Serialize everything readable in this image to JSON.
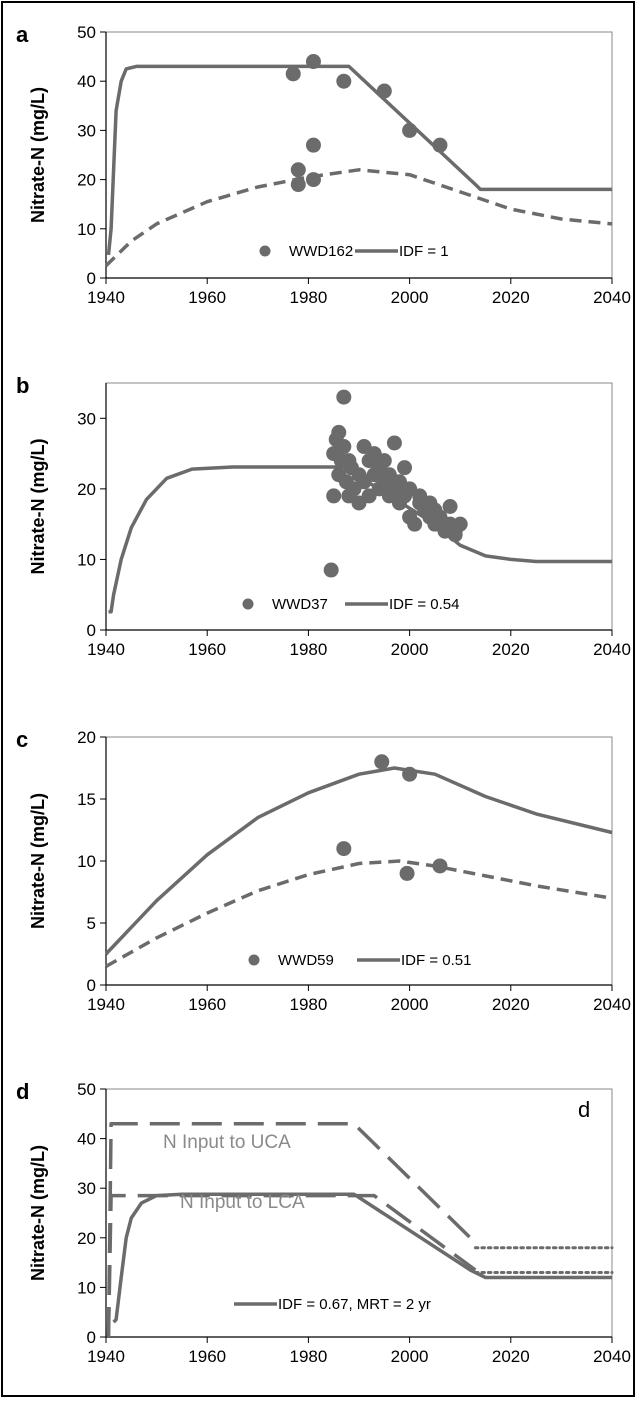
{
  "chart_data": [
    {
      "panel_label": "a",
      "type": "line",
      "ylabel": "Nitrate-N (mg/L)",
      "xlim": [
        1940,
        2040
      ],
      "ylim": [
        0,
        50
      ],
      "xticks": [
        1940,
        1960,
        1980,
        2000,
        2020,
        2040
      ],
      "yticks": [
        0,
        10,
        20,
        30,
        40,
        50
      ],
      "series": [
        {
          "name": "WWD162",
          "style": "points",
          "color": "#6b6b6b",
          "x": [
            1977,
            1978,
            1978,
            1981,
            1981,
            1981,
            1987,
            1995,
            2000,
            2006
          ],
          "y": [
            41.5,
            22,
            19,
            44,
            20,
            27,
            40,
            38,
            30,
            27
          ]
        },
        {
          "name": "IDF = 1",
          "style": "solid",
          "color": "#6b6b6b",
          "x": [
            1940.5,
            1941,
            1941.5,
            1942,
            1943,
            1944,
            1946,
            1950,
            1988,
            2013,
            2014,
            2040
          ],
          "y": [
            4.7,
            10,
            22,
            34,
            40,
            42.5,
            43,
            43,
            43,
            19,
            18,
            18
          ]
        },
        {
          "name": "",
          "style": "dashed",
          "color": "#6b6b6b",
          "x": [
            1940,
            1945,
            1950,
            1960,
            1970,
            1980,
            1990,
            2000,
            2010,
            2020,
            2030,
            2040
          ],
          "y": [
            2.5,
            7.5,
            11,
            15.5,
            18.5,
            20.5,
            22,
            21,
            17.5,
            14,
            12,
            11
          ]
        }
      ],
      "legend": [
        "WWD162",
        "IDF = 1"
      ]
    },
    {
      "panel_label": "b",
      "type": "line",
      "ylabel": "Nitrate-N (mg/L)",
      "xlim": [
        1940,
        2040
      ],
      "ylim": [
        0,
        35
      ],
      "xticks": [
        1940,
        1960,
        1980,
        2000,
        2020,
        2040
      ],
      "yticks": [
        0,
        10,
        20,
        30
      ],
      "series": [
        {
          "name": "WWD37",
          "style": "points",
          "color": "#6b6b6b",
          "x": [
            1985,
            1985,
            1985.5,
            1986,
            1986,
            1986.5,
            1987,
            1987,
            1987.5,
            1988,
            1988,
            1988.5,
            1989,
            1990,
            1990,
            1991,
            1991,
            1992,
            1992,
            1993,
            1993,
            1994,
            1994,
            1995,
            1995,
            1996,
            1996,
            1997,
            1997,
            1998,
            1998,
            1999,
            1999,
            2000,
            2000,
            2001,
            2002,
            2002,
            2003,
            2004,
            2004,
            2005,
            2005,
            2006,
            2006,
            2007,
            2008,
            2008,
            2009,
            2009,
            2010,
            1984.5
          ],
          "y": [
            19,
            25,
            27,
            22,
            28,
            24,
            33,
            26,
            21,
            24,
            19,
            23,
            20,
            22,
            18,
            26,
            21,
            24,
            19,
            25,
            22,
            23,
            20,
            24,
            21,
            22,
            19,
            26.5,
            20,
            21,
            18,
            23,
            19,
            20,
            16,
            15,
            19,
            18,
            17,
            18,
            16,
            17,
            15,
            16,
            15,
            14,
            17.5,
            15,
            14,
            13.5,
            15,
            8.5
          ]
        },
        {
          "name": "IDF = 0.54",
          "style": "solid",
          "color": "#6b6b6b",
          "x": [
            1940.5,
            1941,
            1941.5,
            1943,
            1945,
            1948,
            1952,
            1957,
            1965,
            1987,
            2005,
            2010,
            2015,
            2020,
            2025,
            2040
          ],
          "y": [
            2.6,
            2.6,
            5,
            10,
            14.5,
            18.5,
            21.5,
            22.8,
            23.1,
            23.1,
            15,
            12,
            10.5,
            10,
            9.7,
            9.7
          ]
        }
      ],
      "legend": [
        "WWD37",
        "IDF = 0.54"
      ]
    },
    {
      "panel_label": "c",
      "type": "line",
      "ylabel": "Nitrate-N (mg/L)",
      "xlim": [
        1940,
        2040
      ],
      "ylim": [
        0,
        20
      ],
      "xticks": [
        1940,
        1960,
        1980,
        2000,
        2020,
        2040
      ],
      "yticks": [
        0,
        5,
        10,
        15,
        20
      ],
      "series": [
        {
          "name": "WWD59",
          "style": "points",
          "color": "#6b6b6b",
          "x": [
            1987,
            1994.5,
            1999.5,
            2000,
            2006
          ],
          "y": [
            11,
            18,
            9,
            17,
            9.6
          ]
        },
        {
          "name": "IDF = 0.51",
          "style": "solid",
          "color": "#6b6b6b",
          "x": [
            1940,
            1950,
            1960,
            1970,
            1980,
            1990,
            1997,
            2005,
            2015,
            2025,
            2040
          ],
          "y": [
            2.5,
            6.8,
            10.5,
            13.5,
            15.5,
            17,
            17.5,
            17,
            15.2,
            13.8,
            12.3
          ]
        },
        {
          "name": "",
          "style": "dashed",
          "color": "#6b6b6b",
          "x": [
            1940,
            1950,
            1960,
            1970,
            1980,
            1990,
            1998,
            2005,
            2015,
            2025,
            2040
          ],
          "y": [
            1.5,
            3.8,
            5.8,
            7.6,
            8.9,
            9.8,
            10,
            9.6,
            8.8,
            8,
            7
          ]
        }
      ],
      "legend": [
        "WWD59",
        "IDF = 0.51"
      ]
    },
    {
      "panel_label": "d",
      "corner_label": "d",
      "type": "line",
      "ylabel": "Nitrate-N (mg/L)",
      "xlim": [
        1940,
        2040
      ],
      "ylim": [
        0,
        50
      ],
      "xticks": [
        1940,
        1960,
        1980,
        2000,
        2020,
        2040
      ],
      "yticks": [
        0,
        10,
        20,
        30,
        40,
        50
      ],
      "annotations": [
        "N Input to UCA",
        "N Input to LCA"
      ],
      "series": [
        {
          "name": "",
          "style": "longdash",
          "color": "#6b6b6b",
          "x": [
            1940.5,
            1941,
            1941.5,
            1989,
            2013
          ],
          "y": [
            0,
            43,
            43,
            43,
            19
          ]
        },
        {
          "name": "",
          "style": "dotted",
          "color": "#6b6b6b",
          "x": [
            2013,
            2040
          ],
          "y": [
            18,
            18
          ]
        },
        {
          "name": "",
          "style": "longdash",
          "color": "#6b6b6b",
          "x": [
            1940.5,
            1941,
            1942,
            1993,
            2013
          ],
          "y": [
            0,
            28.5,
            28.5,
            28.5,
            13.5
          ]
        },
        {
          "name": "",
          "style": "dotted",
          "color": "#6b6b6b",
          "x": [
            2013,
            2040
          ],
          "y": [
            13,
            13
          ]
        },
        {
          "name": "IDF = 0.67, MRT = 2 yr",
          "style": "solid",
          "color": "#6b6b6b",
          "x": [
            1941.5,
            1942,
            1943,
            1944,
            1945,
            1947,
            1950,
            1955,
            1989,
            2012,
            2015,
            2040
          ],
          "y": [
            3,
            3.5,
            12,
            20,
            24,
            27,
            28.5,
            28.8,
            28.8,
            13.5,
            12,
            12
          ]
        }
      ],
      "legend": [
        "IDF = 0.67, MRT = 2 yr"
      ]
    }
  ]
}
